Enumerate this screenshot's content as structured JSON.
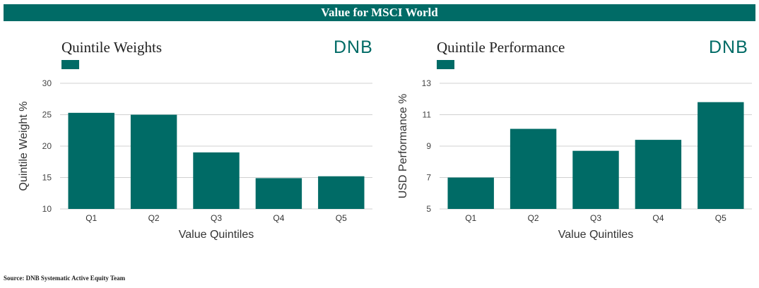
{
  "banner_title": "Value for MSCI World",
  "logo_text": "DNB",
  "accent_color": "#006b66",
  "source": "Source: DNB Systematic Active Equity Team",
  "chart_data": [
    {
      "type": "bar",
      "title": "Quintile Weights",
      "xlabel": "Value Quintiles",
      "ylabel": "Quintile Weight %",
      "categories": [
        "Q1",
        "Q2",
        "Q3",
        "Q4",
        "Q5"
      ],
      "values": [
        25.3,
        25.0,
        19.0,
        14.9,
        15.2
      ],
      "ylim": [
        10,
        30
      ],
      "yticks": [
        10,
        15,
        20,
        25,
        30
      ],
      "grid": true,
      "color": "#006b66"
    },
    {
      "type": "bar",
      "title": "Quintile Performance",
      "xlabel": "Value Quintiles",
      "ylabel": "USD Performance %",
      "categories": [
        "Q1",
        "Q2",
        "Q3",
        "Q4",
        "Q5"
      ],
      "values": [
        7.0,
        10.1,
        8.7,
        9.4,
        11.8
      ],
      "ylim": [
        5,
        13
      ],
      "yticks": [
        5,
        7,
        9,
        11,
        13
      ],
      "grid": true,
      "color": "#006b66"
    }
  ]
}
